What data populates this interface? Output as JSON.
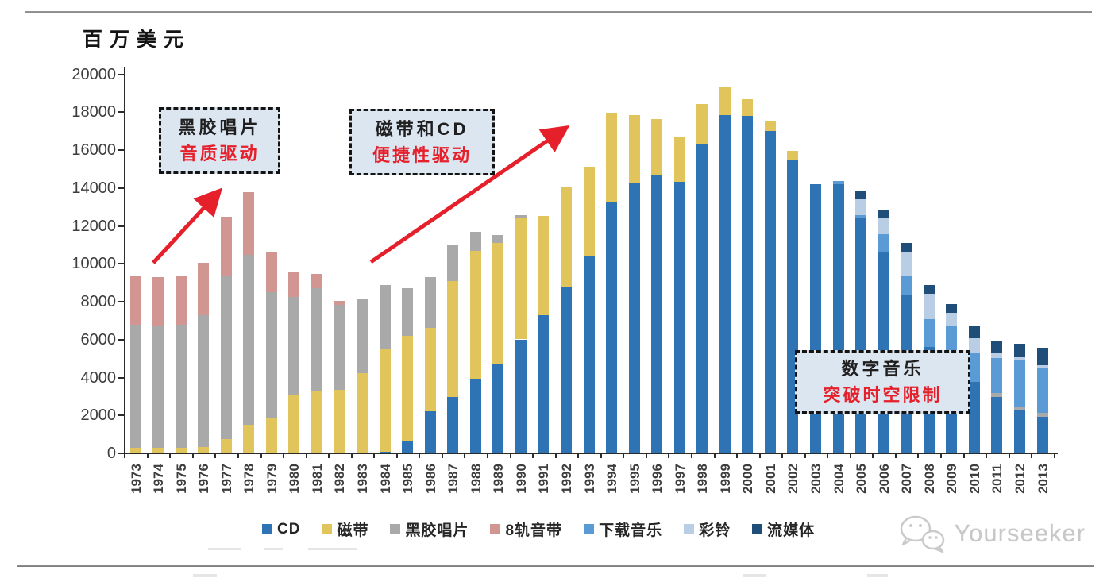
{
  "page": {
    "unit_label": "百万美元",
    "watermark_brand": "Yourseeker"
  },
  "annotations": [
    {
      "line1": "黑胶唱片",
      "line2": "音质驱动"
    },
    {
      "line1": "磁带和CD",
      "line2": "便捷性驱动"
    },
    {
      "line1": "数字音乐",
      "line2": "突破时空限制"
    }
  ],
  "chart_data": {
    "type": "bar",
    "stacked": true,
    "title": "",
    "xlabel": "",
    "ylabel": "百万美元",
    "ylim": [
      0,
      20000
    ],
    "ytick_step": 2000,
    "grid": false,
    "legend_position": "bottom",
    "categories": [
      1973,
      1974,
      1975,
      1976,
      1977,
      1978,
      1979,
      1980,
      1981,
      1982,
      1983,
      1984,
      1985,
      1986,
      1987,
      1988,
      1989,
      1990,
      1991,
      1992,
      1993,
      1994,
      1995,
      1996,
      1997,
      1998,
      1999,
      2000,
      2001,
      2002,
      2003,
      2004,
      2005,
      2006,
      2007,
      2008,
      2009,
      2010,
      2011,
      2012,
      2013
    ],
    "series": [
      {
        "name": "CD",
        "color": "#2E74B5",
        "values": [
          0,
          0,
          0,
          0,
          0,
          0,
          0,
          0,
          0,
          0,
          0,
          100,
          660,
          2210,
          2980,
          3950,
          4750,
          6010,
          7270,
          8740,
          10430,
          13290,
          14260,
          14680,
          14340,
          16320,
          17850,
          17800,
          17000,
          15480,
          14200,
          14200,
          12400,
          10630,
          8370,
          5630,
          4800,
          3790,
          2980,
          2270,
          1920
        ]
      },
      {
        "name": "磁带",
        "color": "#E2C45C",
        "values": [
          300,
          300,
          300,
          350,
          750,
          1500,
          1900,
          3060,
          3270,
          3330,
          4240,
          5400,
          5540,
          4420,
          6100,
          6730,
          6360,
          6420,
          5260,
          5310,
          4670,
          4660,
          3580,
          2950,
          2320,
          2110,
          1450,
          880,
          500,
          460,
          0,
          0,
          0,
          0,
          0,
          0,
          0,
          0,
          0,
          0,
          0
        ]
      },
      {
        "name": "黑胶唱片",
        "color": "#A9A9A9",
        "values": [
          6500,
          6450,
          6500,
          6950,
          8580,
          8980,
          6590,
          5180,
          5460,
          4490,
          3930,
          3370,
          2530,
          2670,
          1900,
          1010,
          420,
          150,
          0,
          0,
          0,
          0,
          0,
          0,
          0,
          0,
          0,
          0,
          0,
          0,
          0,
          0,
          0,
          0,
          0,
          0,
          0,
          0,
          210,
          210,
          210
        ]
      },
      {
        "name": "8轨音带",
        "color": "#D29692",
        "values": [
          2600,
          2550,
          2550,
          2750,
          3170,
          3320,
          2100,
          1330,
          730,
          210,
          0,
          0,
          0,
          0,
          0,
          0,
          0,
          0,
          0,
          0,
          0,
          0,
          0,
          0,
          0,
          0,
          0,
          0,
          0,
          0,
          0,
          0,
          0,
          0,
          0,
          0,
          0,
          0,
          0,
          0,
          0
        ]
      },
      {
        "name": "下载音乐",
        "color": "#5B9BD5",
        "values": [
          0,
          0,
          0,
          0,
          0,
          0,
          0,
          0,
          0,
          0,
          0,
          0,
          0,
          0,
          0,
          0,
          0,
          0,
          0,
          0,
          0,
          0,
          0,
          0,
          0,
          0,
          0,
          0,
          0,
          0,
          0,
          150,
          150,
          910,
          980,
          1450,
          1900,
          1500,
          1850,
          2400,
          2380
        ]
      },
      {
        "name": "彩铃",
        "color": "#B9CDE5",
        "values": [
          0,
          0,
          0,
          0,
          0,
          0,
          0,
          0,
          0,
          0,
          0,
          0,
          0,
          0,
          0,
          0,
          0,
          0,
          0,
          0,
          0,
          0,
          0,
          0,
          0,
          0,
          0,
          0,
          0,
          0,
          0,
          0,
          840,
          840,
          1260,
          1350,
          700,
          770,
          250,
          200,
          150
        ]
      },
      {
        "name": "流媒体",
        "color": "#1F4E79",
        "values": [
          0,
          0,
          0,
          0,
          0,
          0,
          0,
          0,
          0,
          0,
          0,
          0,
          0,
          0,
          0,
          0,
          0,
          0,
          0,
          0,
          0,
          0,
          0,
          0,
          0,
          0,
          0,
          0,
          0,
          0,
          0,
          0,
          450,
          490,
          490,
          470,
          490,
          630,
          630,
          700,
          910
        ]
      }
    ]
  }
}
